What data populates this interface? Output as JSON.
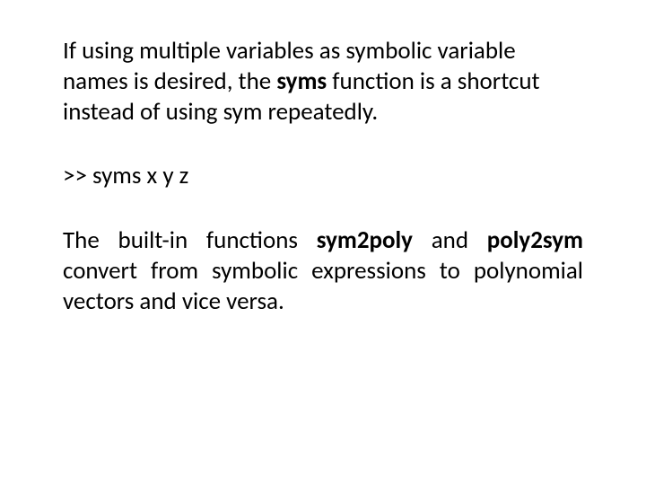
{
  "colors": {
    "background": "#ffffff",
    "text": "#000000"
  },
  "typography": {
    "family": "Calibri, 'Segoe UI', Arial, sans-serif",
    "body_size_pt": 20,
    "line_height": 1.25,
    "bold_weight": 700
  },
  "paragraphs": {
    "p1": {
      "t1": "If using  multiple  variables  as symbolic variable  names  is desired,  the  ",
      "b1": "syms",
      "t2": " function is a shortcut  instead  of using sym repeatedly."
    },
    "p2": {
      "t1": ">> syms x y z"
    },
    "p3": {
      "t1": "The built-in functions ",
      "b1": "sym2poly",
      "t2": " and ",
      "b2": "poly2sym",
      "t3": " convert from symbolic expressions to polynomial vectors and vice versa."
    }
  }
}
